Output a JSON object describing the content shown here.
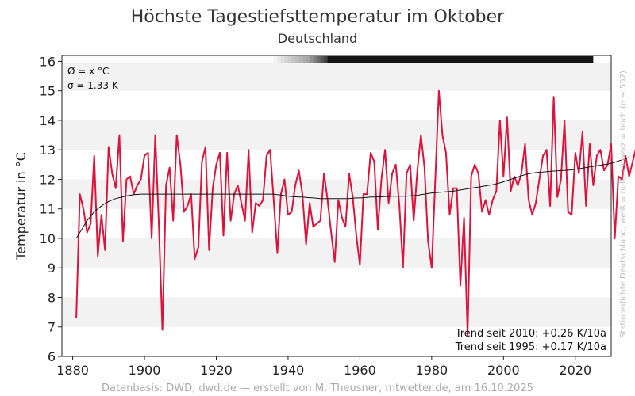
{
  "chart_data": {
    "type": "line",
    "title": "Höchste Tagestiefsttemperatur im Oktober",
    "subtitle": "Deutschland",
    "ylabel": "Temperatur in °C",
    "xlabel": "",
    "xlim": [
      1877,
      2030
    ],
    "ylim": [
      6,
      16.2
    ],
    "x_ticks": [
      1880,
      1900,
      1920,
      1940,
      1960,
      1980,
      2000,
      2020
    ],
    "y_ticks": [
      6,
      7,
      8,
      9,
      10,
      11,
      12,
      13,
      14,
      15,
      16
    ],
    "grid": "horizontal bands",
    "annotation_mean": "Ø = x °C",
    "annotation_sigma": "σ = 1.33 K",
    "trend_2010": "Trend seit 2010: +0.26 K/10a",
    "trend_1995": "Trend seit 1995: +0.17 K/10a",
    "side_note": "Stationsdichte Deutschland; weiß = null, schwarz = hoch (n ≤ 552)",
    "footer": "Datenbasis: DWD, dwd.de — erstellt von M. Theusner, mtwetter.de, am 16.10.2025",
    "series": [
      {
        "x_start": 1881,
        "color": "#dc143c",
        "values": [
          7.3,
          11.5,
          11.0,
          10.2,
          10.5,
          12.8,
          9.4,
          10.8,
          9.6,
          13.1,
          12.2,
          11.7,
          13.5,
          9.9,
          12.0,
          12.1,
          11.5,
          11.8,
          12.0,
          12.8,
          12.9,
          10.0,
          13.5,
          10.5,
          6.9,
          11.8,
          12.4,
          10.6,
          13.5,
          12.5,
          10.9,
          11.1,
          11.5,
          9.3,
          9.7,
          12.6,
          13.1,
          9.6,
          11.7,
          12.5,
          12.9,
          10.1,
          12.9,
          10.6,
          11.5,
          11.8,
          11.2,
          10.6,
          13.0,
          10.2,
          11.2,
          11.1,
          11.3,
          12.8,
          13.0,
          11.3,
          9.5,
          11.5,
          12.0,
          10.8,
          10.9,
          11.8,
          12.3,
          11.5,
          9.8,
          11.2,
          10.4,
          10.5,
          10.6,
          12.2,
          11.3,
          10.2,
          9.2,
          11.3,
          10.7,
          10.4,
          12.2,
          11.4,
          10.1,
          9.1,
          11.5,
          11.5,
          12.9,
          12.6,
          10.3,
          12.0,
          13.0,
          11.2,
          12.2,
          12.5,
          11.1,
          9.0,
          12.2,
          12.5,
          10.6,
          12.3,
          13.5,
          12.4,
          9.9,
          9.0,
          12.0,
          15.0,
          13.5,
          12.9,
          10.8,
          11.7,
          11.7,
          8.4,
          10.7,
          6.7,
          12.1,
          12.5,
          12.2,
          10.9,
          11.3,
          10.8,
          11.3,
          11.6,
          14.0,
          12.1,
          14.1,
          11.6,
          12.1,
          11.8,
          12.2,
          13.2,
          11.3,
          10.8,
          11.2,
          12.0,
          12.8,
          13.0,
          11.1,
          14.8,
          11.4,
          12.0,
          14.0,
          10.9,
          10.8,
          12.9,
          12.2,
          13.6,
          11.1,
          13.2,
          11.8,
          12.8,
          13.0,
          12.3,
          12.5,
          13.2,
          10.0,
          12.1,
          12.0,
          12.8,
          12.1,
          12.6,
          13.1,
          14.2,
          12.5
        ]
      },
      {
        "x_start": 1881,
        "color": "#111111",
        "values": [
          10.0,
          10.2,
          10.4,
          10.6,
          10.75,
          10.9,
          11.0,
          11.1,
          11.18,
          11.25,
          11.3,
          11.35,
          11.38,
          11.41,
          11.44,
          11.46,
          11.48,
          11.49,
          11.5,
          11.5,
          11.5,
          11.5,
          11.5,
          11.5,
          11.5,
          11.5,
          11.5,
          11.5,
          11.5,
          11.5,
          11.5,
          11.5,
          11.5,
          11.5,
          11.5,
          11.5,
          11.5,
          11.5,
          11.5,
          11.5,
          11.5,
          11.5,
          11.5,
          11.5,
          11.5,
          11.5,
          11.5,
          11.5,
          11.5,
          11.5,
          11.5,
          11.5,
          11.5,
          11.5,
          11.5,
          11.5,
          11.48,
          11.47,
          11.45,
          11.43,
          11.42,
          11.41,
          11.4,
          11.4,
          11.39,
          11.38,
          11.37,
          11.36,
          11.35,
          11.35,
          11.35,
          11.35,
          11.35,
          11.35,
          11.35,
          11.35,
          11.35,
          11.36,
          11.37,
          11.37,
          11.38,
          11.39,
          11.4,
          11.4,
          11.41,
          11.41,
          11.42,
          11.42,
          11.43,
          11.43,
          11.43,
          11.43,
          11.43,
          11.44,
          11.45,
          11.46,
          11.48,
          11.5,
          11.52,
          11.54,
          11.55,
          11.56,
          11.57,
          11.58,
          11.59,
          11.6,
          11.62,
          11.64,
          11.66,
          11.68,
          11.7,
          11.72,
          11.74,
          11.76,
          11.78,
          11.8,
          11.82,
          11.85,
          11.88,
          11.92,
          11.96,
          12.0,
          12.04,
          12.08,
          12.12,
          12.16,
          12.19,
          12.21,
          12.23,
          12.24,
          12.25,
          12.26,
          12.27,
          12.28,
          12.29,
          12.3,
          12.3,
          12.31,
          12.32,
          12.34,
          12.36,
          12.38,
          12.4,
          12.42,
          12.44,
          12.46,
          12.48,
          12.5,
          12.52,
          12.55,
          12.58,
          12.62,
          12.66,
          12.7,
          12.74
        ]
      }
    ]
  }
}
